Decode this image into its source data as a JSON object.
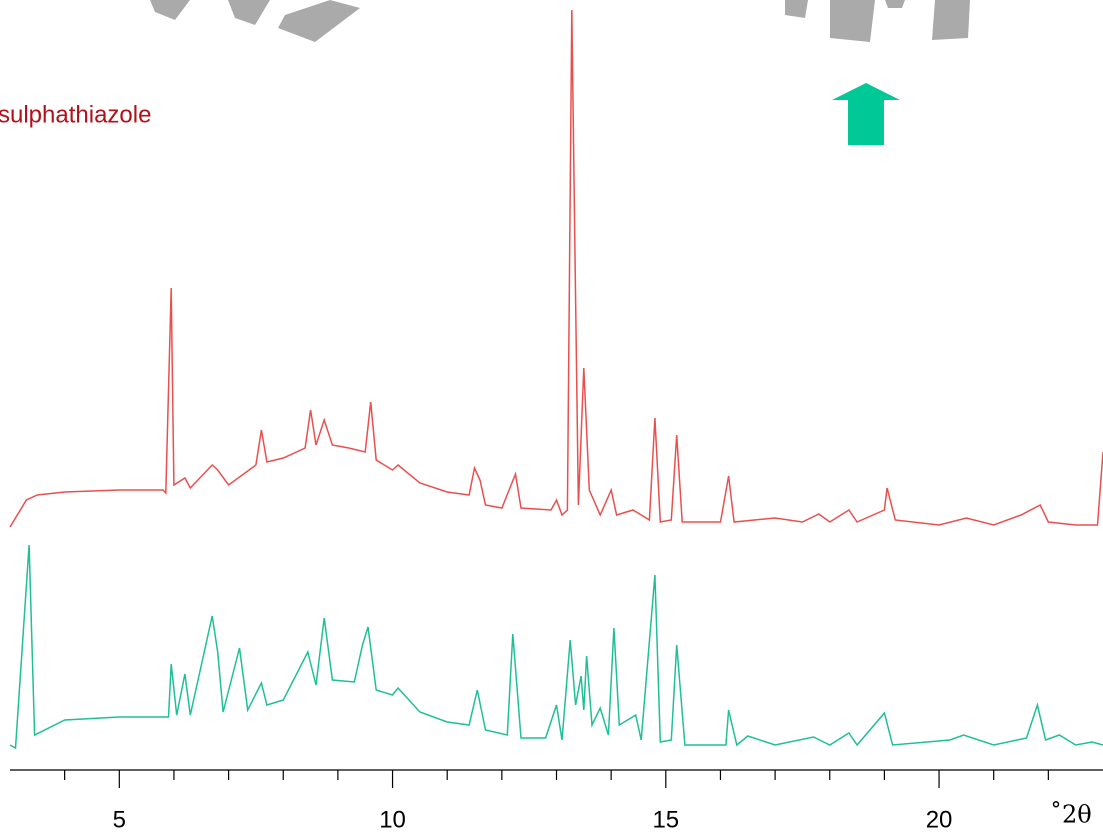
{
  "chart_data": {
    "type": "line",
    "annotation": "sulphathiazole",
    "annotation_color": "#b0111a",
    "x_label": "˚2θ",
    "xlim": [
      3,
      23
    ],
    "ylim": [
      0,
      770
    ],
    "xticks": [
      5,
      10,
      15,
      20
    ],
    "xminor_ticks": [
      4,
      6,
      7,
      8,
      9,
      11,
      12,
      13,
      14,
      16,
      17,
      18,
      19,
      21,
      22
    ],
    "series": [
      {
        "color": "#e8504f",
        "x": [
          3.0,
          3.3,
          3.5,
          4.0,
          5.0,
          5.8,
          5.85,
          5.95,
          6.0,
          6.2,
          6.3,
          6.7,
          6.8,
          7.0,
          7.5,
          7.6,
          7.7,
          8.0,
          8.4,
          8.5,
          8.6,
          8.75,
          8.9,
          9.2,
          9.5,
          9.6,
          9.7,
          10.0,
          10.1,
          10.5,
          11.0,
          11.4,
          11.5,
          11.6,
          11.7,
          12.0,
          12.25,
          12.35,
          12.9,
          13.0,
          13.1,
          13.2,
          13.28,
          13.35,
          13.4,
          13.5,
          13.6,
          13.8,
          14.0,
          14.1,
          14.4,
          14.7,
          14.8,
          14.9,
          15.1,
          15.2,
          15.3,
          16.0,
          16.15,
          16.25,
          17.0,
          17.5,
          17.8,
          18.0,
          18.35,
          18.5,
          19.0,
          19.05,
          19.2,
          20.0,
          20.5,
          21.0,
          21.5,
          21.85,
          22.0,
          22.5,
          22.9,
          23.0
        ],
        "values": [
          243,
          270,
          275,
          278,
          280,
          280,
          277,
          482,
          285,
          292,
          282,
          305,
          300,
          285,
          305,
          340,
          308,
          312,
          322,
          360,
          325,
          350,
          325,
          322,
          318,
          368,
          310,
          300,
          305,
          287,
          278,
          275,
          302,
          290,
          265,
          262,
          296,
          262,
          260,
          270,
          255,
          260,
          760,
          470,
          265,
          402,
          280,
          255,
          280,
          255,
          260,
          250,
          352,
          248,
          250,
          335,
          248,
          248,
          294,
          248,
          252,
          248,
          256,
          248,
          260,
          248,
          260,
          282,
          250,
          245,
          252,
          245,
          255,
          265,
          248,
          245,
          245,
          318
        ]
      },
      {
        "color": "#1fbf98",
        "x": [
          3.0,
          3.1,
          3.35,
          3.45,
          4.0,
          5.0,
          5.9,
          5.95,
          6.05,
          6.2,
          6.3,
          6.7,
          6.8,
          6.9,
          7.2,
          7.35,
          7.6,
          7.7,
          8.0,
          8.45,
          8.6,
          8.75,
          8.9,
          9.3,
          9.45,
          9.55,
          9.7,
          10.0,
          10.1,
          10.5,
          11.0,
          11.4,
          11.55,
          11.7,
          12.1,
          12.2,
          12.35,
          12.8,
          13.0,
          13.1,
          13.25,
          13.35,
          13.45,
          13.5,
          13.55,
          13.65,
          13.8,
          13.95,
          14.05,
          14.15,
          14.45,
          14.55,
          14.8,
          14.9,
          15.1,
          15.2,
          15.35,
          16.1,
          16.15,
          16.3,
          16.5,
          17.0,
          17.7,
          18.0,
          18.35,
          18.5,
          19.0,
          19.15,
          20.2,
          20.45,
          21.0,
          21.6,
          21.8,
          21.95,
          22.2,
          22.5,
          22.8,
          23.0
        ],
        "values": [
          25,
          22,
          225,
          35,
          50,
          53,
          53,
          106,
          55,
          96,
          55,
          154,
          118,
          58,
          122,
          60,
          87,
          65,
          70,
          118,
          85,
          152,
          90,
          88,
          125,
          143,
          80,
          75,
          82,
          58,
          48,
          45,
          80,
          40,
          35,
          136,
          32,
          32,
          65,
          30,
          130,
          65,
          94,
          60,
          114,
          45,
          62,
          35,
          142,
          45,
          55,
          30,
          195,
          28,
          30,
          125,
          25,
          25,
          60,
          25,
          34,
          25,
          33,
          25,
          37,
          25,
          57,
          25,
          30,
          35,
          25,
          32,
          65,
          30,
          35,
          25,
          28,
          25
        ]
      }
    ]
  }
}
